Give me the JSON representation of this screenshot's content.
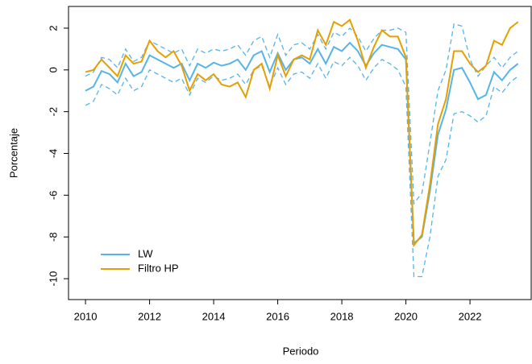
{
  "chart_data": {
    "type": "line",
    "xlabel": "Periodo",
    "ylabel": "Porcentaje",
    "x": [
      2010,
      2010.25,
      2010.5,
      2010.75,
      2011,
      2011.25,
      2011.5,
      2011.75,
      2012,
      2012.25,
      2012.5,
      2012.75,
      2013,
      2013.25,
      2013.5,
      2013.75,
      2014,
      2014.25,
      2014.5,
      2014.75,
      2015,
      2015.25,
      2015.5,
      2015.75,
      2016,
      2016.25,
      2016.5,
      2016.75,
      2017,
      2017.25,
      2017.5,
      2017.75,
      2018,
      2018.25,
      2018.5,
      2018.75,
      2019,
      2019.25,
      2019.5,
      2019.75,
      2020,
      2020.25,
      2020.5,
      2020.75,
      2021,
      2021.25,
      2021.5,
      2021.75,
      2022,
      2022.25,
      2022.5,
      2022.75,
      2023,
      2023.25,
      2023.5
    ],
    "series": [
      {
        "name": "LW",
        "color": "#56b4e9",
        "values": [
          -1.0,
          -0.8,
          -0.05,
          -0.2,
          -0.6,
          0.3,
          -0.3,
          -0.1,
          0.7,
          0.5,
          0.3,
          0.1,
          0.3,
          -0.5,
          0.3,
          0.1,
          0.35,
          0.2,
          0.3,
          0.5,
          0.0,
          0.7,
          0.9,
          -0.1,
          0.8,
          0.0,
          0.5,
          0.6,
          0.3,
          1.0,
          0.3,
          1.1,
          0.9,
          1.3,
          0.9,
          0.2,
          0.8,
          1.2,
          1.1,
          1.0,
          0.5,
          -8.3,
          -8.0,
          -5.8,
          -3.1,
          -1.9,
          0.0,
          0.1,
          -0.6,
          -1.4,
          -1.2,
          -0.1,
          -0.5,
          0.0,
          0.3
        ]
      },
      {
        "name": "Filtro HP",
        "color": "#e69f00",
        "values": [
          -0.1,
          0.0,
          0.5,
          0.1,
          -0.3,
          0.7,
          0.3,
          0.4,
          1.4,
          0.9,
          0.6,
          0.9,
          0.2,
          -1.0,
          -0.2,
          -0.5,
          -0.2,
          -0.7,
          -0.8,
          -0.6,
          -1.3,
          0.0,
          0.3,
          -0.9,
          0.7,
          -0.3,
          0.5,
          0.7,
          0.5,
          1.9,
          1.2,
          2.3,
          2.1,
          2.4,
          1.4,
          0.1,
          1.1,
          1.9,
          1.6,
          1.6,
          0.6,
          -8.4,
          -7.9,
          -5.5,
          -2.6,
          -1.4,
          0.9,
          0.9,
          0.3,
          -0.1,
          0.2,
          1.4,
          1.2,
          2.0,
          2.3
        ]
      }
    ],
    "bands": {
      "color": "#56b4e9",
      "upper": [
        -0.3,
        -0.1,
        0.6,
        0.5,
        0.1,
        1.0,
        0.4,
        0.6,
        1.4,
        1.2,
        1.0,
        0.8,
        1.0,
        0.2,
        1.0,
        0.8,
        1.0,
        0.9,
        1.0,
        1.2,
        0.7,
        1.4,
        1.6,
        0.6,
        1.7,
        0.7,
        1.2,
        1.3,
        1.0,
        1.7,
        1.0,
        1.8,
        1.6,
        2.0,
        1.6,
        0.9,
        1.5,
        1.9,
        1.9,
        2.0,
        1.8,
        -6.4,
        -5.9,
        -3.5,
        -1.0,
        0.0,
        2.2,
        2.1,
        0.5,
        -0.3,
        0.2,
        0.6,
        0.1,
        0.6,
        0.9
      ],
      "lower": [
        -1.7,
        -1.5,
        -0.7,
        -0.9,
        -1.2,
        -0.4,
        -1.0,
        -0.8,
        0.0,
        -0.2,
        -0.4,
        -0.6,
        -0.4,
        -1.2,
        -0.4,
        -0.6,
        -0.3,
        -0.5,
        -0.4,
        -0.2,
        -0.7,
        0.0,
        0.2,
        -0.8,
        0.1,
        -0.7,
        -0.2,
        -0.1,
        -0.4,
        0.3,
        -0.4,
        0.4,
        0.2,
        0.6,
        0.2,
        -0.5,
        0.1,
        0.5,
        0.3,
        0.0,
        -0.8,
        -9.9,
        -9.9,
        -8.0,
        -5.1,
        -4.3,
        -2.1,
        -2.0,
        -2.2,
        -2.5,
        -2.2,
        -0.8,
        -1.1,
        -0.6,
        -0.3
      ]
    },
    "xlim": [
      2009.47,
      2023.91
    ],
    "ylim": [
      -11.0,
      3.04
    ],
    "xticks": [
      2010,
      2012,
      2014,
      2016,
      2018,
      2020,
      2022
    ],
    "yticks": [
      -10,
      -8,
      -6,
      -4,
      -2,
      0,
      2
    ],
    "legend": "bottom-left"
  }
}
